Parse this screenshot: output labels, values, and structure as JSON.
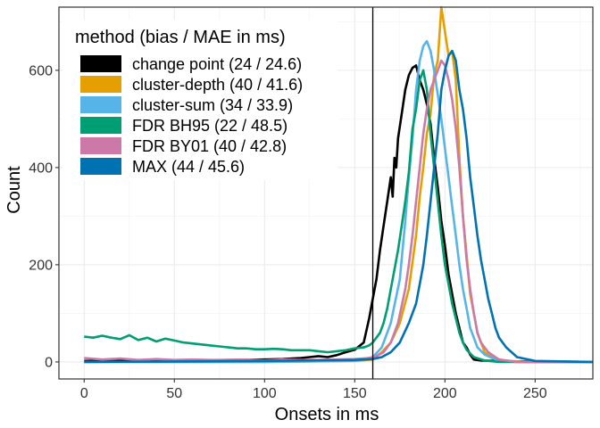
{
  "chart_data": {
    "type": "line",
    "title": "",
    "xlabel": "Onsets in ms",
    "ylabel": "Count",
    "xlim": [
      -14,
      282
    ],
    "ylim": [
      -35,
      730
    ],
    "x_ticks": [
      0,
      50,
      100,
      150,
      200,
      250
    ],
    "y_ticks": [
      0,
      200,
      400,
      600
    ],
    "x_tick_labels": [
      "0",
      "50",
      "100",
      "150",
      "200",
      "250"
    ],
    "y_tick_labels": [
      "0",
      "200",
      "400",
      "600"
    ],
    "vline": 160,
    "grid": true,
    "legend": {
      "title": "method (bias / MAE in ms)",
      "position": "top-left"
    },
    "series": [
      {
        "name": "change point (24 / 24.6)",
        "color": "#000000",
        "points": [
          [
            0,
            2
          ],
          [
            20,
            2
          ],
          [
            40,
            3
          ],
          [
            60,
            3
          ],
          [
            80,
            4
          ],
          [
            100,
            5
          ],
          [
            110,
            6
          ],
          [
            120,
            8
          ],
          [
            125,
            10
          ],
          [
            130,
            12
          ],
          [
            135,
            10
          ],
          [
            140,
            14
          ],
          [
            145,
            20
          ],
          [
            150,
            25
          ],
          [
            155,
            40
          ],
          [
            158,
            90
          ],
          [
            160,
            130
          ],
          [
            162,
            170
          ],
          [
            164,
            230
          ],
          [
            166,
            280
          ],
          [
            168,
            330
          ],
          [
            170,
            380
          ],
          [
            171,
            340
          ],
          [
            172,
            420
          ],
          [
            173,
            400
          ],
          [
            174,
            460
          ],
          [
            176,
            510
          ],
          [
            178,
            560
          ],
          [
            180,
            590
          ],
          [
            182,
            605
          ],
          [
            184,
            610
          ],
          [
            186,
            580
          ],
          [
            188,
            560
          ],
          [
            190,
            530
          ],
          [
            192,
            490
          ],
          [
            194,
            420
          ],
          [
            196,
            360
          ],
          [
            198,
            290
          ],
          [
            200,
            240
          ],
          [
            202,
            180
          ],
          [
            204,
            140
          ],
          [
            206,
            100
          ],
          [
            208,
            70
          ],
          [
            210,
            40
          ],
          [
            212,
            30
          ],
          [
            214,
            15
          ],
          [
            216,
            5
          ],
          [
            220,
            3
          ],
          [
            240,
            1
          ],
          [
            282,
            0
          ]
        ]
      },
      {
        "name": "cluster-depth (40 / 41.6)",
        "color": "#E69F00",
        "points": [
          [
            0,
            0
          ],
          [
            100,
            0
          ],
          [
            150,
            2
          ],
          [
            160,
            5
          ],
          [
            165,
            20
          ],
          [
            170,
            40
          ],
          [
            175,
            80
          ],
          [
            180,
            150
          ],
          [
            184,
            260
          ],
          [
            186,
            340
          ],
          [
            188,
            400
          ],
          [
            190,
            470
          ],
          [
            192,
            510
          ],
          [
            194,
            590
          ],
          [
            196,
            620
          ],
          [
            198,
            730
          ],
          [
            200,
            680
          ],
          [
            202,
            630
          ],
          [
            204,
            640
          ],
          [
            206,
            580
          ],
          [
            208,
            420
          ],
          [
            210,
            300
          ],
          [
            212,
            220
          ],
          [
            214,
            140
          ],
          [
            216,
            100
          ],
          [
            218,
            60
          ],
          [
            220,
            40
          ],
          [
            222,
            20
          ],
          [
            226,
            10
          ],
          [
            232,
            3
          ],
          [
            245,
            0
          ],
          [
            282,
            0
          ]
        ]
      },
      {
        "name": "cluster-sum (34 / 33.9)",
        "color": "#56B4E9",
        "points": [
          [
            0,
            0
          ],
          [
            100,
            0
          ],
          [
            150,
            2
          ],
          [
            160,
            10
          ],
          [
            165,
            30
          ],
          [
            170,
            80
          ],
          [
            175,
            170
          ],
          [
            178,
            290
          ],
          [
            180,
            380
          ],
          [
            182,
            460
          ],
          [
            184,
            560
          ],
          [
            186,
            620
          ],
          [
            188,
            650
          ],
          [
            190,
            660
          ],
          [
            192,
            640
          ],
          [
            194,
            600
          ],
          [
            196,
            550
          ],
          [
            198,
            500
          ],
          [
            200,
            440
          ],
          [
            202,
            380
          ],
          [
            204,
            320
          ],
          [
            206,
            260
          ],
          [
            208,
            200
          ],
          [
            210,
            150
          ],
          [
            212,
            110
          ],
          [
            214,
            70
          ],
          [
            216,
            50
          ],
          [
            218,
            30
          ],
          [
            222,
            15
          ],
          [
            228,
            5
          ],
          [
            240,
            0
          ],
          [
            282,
            0
          ]
        ]
      },
      {
        "name": "FDR BH95 (22 / 48.5)",
        "color": "#009E73",
        "points": [
          [
            0,
            52
          ],
          [
            5,
            50
          ],
          [
            10,
            54
          ],
          [
            15,
            50
          ],
          [
            20,
            47
          ],
          [
            25,
            55
          ],
          [
            30,
            45
          ],
          [
            35,
            50
          ],
          [
            40,
            42
          ],
          [
            45,
            48
          ],
          [
            50,
            44
          ],
          [
            55,
            40
          ],
          [
            60,
            38
          ],
          [
            65,
            36
          ],
          [
            70,
            34
          ],
          [
            75,
            32
          ],
          [
            80,
            30
          ],
          [
            85,
            28
          ],
          [
            90,
            28
          ],
          [
            95,
            26
          ],
          [
            100,
            26
          ],
          [
            105,
            27
          ],
          [
            110,
            26
          ],
          [
            115,
            24
          ],
          [
            120,
            24
          ],
          [
            125,
            24
          ],
          [
            130,
            22
          ],
          [
            135,
            20
          ],
          [
            140,
            22
          ],
          [
            145,
            24
          ],
          [
            150,
            28
          ],
          [
            155,
            30
          ],
          [
            158,
            34
          ],
          [
            160,
            40
          ],
          [
            162,
            50
          ],
          [
            164,
            60
          ],
          [
            166,
            80
          ],
          [
            168,
            110
          ],
          [
            170,
            150
          ],
          [
            172,
            190
          ],
          [
            174,
            230
          ],
          [
            176,
            280
          ],
          [
            178,
            330
          ],
          [
            180,
            390
          ],
          [
            182,
            480
          ],
          [
            184,
            520
          ],
          [
            186,
            580
          ],
          [
            188,
            600
          ],
          [
            190,
            560
          ],
          [
            192,
            470
          ],
          [
            194,
            400
          ],
          [
            196,
            330
          ],
          [
            198,
            260
          ],
          [
            200,
            200
          ],
          [
            202,
            160
          ],
          [
            204,
            120
          ],
          [
            206,
            90
          ],
          [
            208,
            60
          ],
          [
            210,
            40
          ],
          [
            212,
            25
          ],
          [
            216,
            10
          ],
          [
            222,
            3
          ],
          [
            230,
            0
          ],
          [
            282,
            0
          ]
        ]
      },
      {
        "name": "FDR BY01 (40 / 42.8)",
        "color": "#CC79A7",
        "points": [
          [
            0,
            8
          ],
          [
            10,
            5
          ],
          [
            20,
            7
          ],
          [
            30,
            4
          ],
          [
            40,
            6
          ],
          [
            50,
            4
          ],
          [
            60,
            5
          ],
          [
            70,
            4
          ],
          [
            80,
            4
          ],
          [
            90,
            5
          ],
          [
            100,
            3
          ],
          [
            110,
            5
          ],
          [
            120,
            4
          ],
          [
            130,
            4
          ],
          [
            140,
            5
          ],
          [
            150,
            6
          ],
          [
            158,
            8
          ],
          [
            162,
            12
          ],
          [
            166,
            20
          ],
          [
            170,
            40
          ],
          [
            174,
            80
          ],
          [
            178,
            150
          ],
          [
            180,
            200
          ],
          [
            182,
            260
          ],
          [
            184,
            330
          ],
          [
            186,
            400
          ],
          [
            188,
            470
          ],
          [
            190,
            520
          ],
          [
            192,
            560
          ],
          [
            194,
            580
          ],
          [
            196,
            600
          ],
          [
            198,
            620
          ],
          [
            200,
            610
          ],
          [
            202,
            580
          ],
          [
            204,
            540
          ],
          [
            206,
            480
          ],
          [
            208,
            400
          ],
          [
            210,
            300
          ],
          [
            212,
            210
          ],
          [
            214,
            150
          ],
          [
            216,
            100
          ],
          [
            218,
            60
          ],
          [
            220,
            40
          ],
          [
            224,
            20
          ],
          [
            230,
            5
          ],
          [
            240,
            0
          ],
          [
            282,
            0
          ]
        ]
      },
      {
        "name": "MAX (44 / 45.6)",
        "color": "#0072B2",
        "points": [
          [
            0,
            0
          ],
          [
            50,
            1
          ],
          [
            100,
            2
          ],
          [
            150,
            4
          ],
          [
            160,
            6
          ],
          [
            165,
            10
          ],
          [
            170,
            20
          ],
          [
            175,
            40
          ],
          [
            180,
            80
          ],
          [
            184,
            120
          ],
          [
            186,
            160
          ],
          [
            188,
            200
          ],
          [
            190,
            260
          ],
          [
            192,
            330
          ],
          [
            194,
            400
          ],
          [
            196,
            470
          ],
          [
            198,
            560
          ],
          [
            200,
            600
          ],
          [
            202,
            630
          ],
          [
            204,
            640
          ],
          [
            206,
            620
          ],
          [
            208,
            560
          ],
          [
            210,
            520
          ],
          [
            212,
            460
          ],
          [
            214,
            380
          ],
          [
            216,
            320
          ],
          [
            218,
            260
          ],
          [
            220,
            210
          ],
          [
            222,
            170
          ],
          [
            224,
            130
          ],
          [
            226,
            100
          ],
          [
            228,
            70
          ],
          [
            230,
            50
          ],
          [
            234,
            30
          ],
          [
            240,
            10
          ],
          [
            250,
            2
          ],
          [
            282,
            0
          ]
        ]
      }
    ]
  }
}
